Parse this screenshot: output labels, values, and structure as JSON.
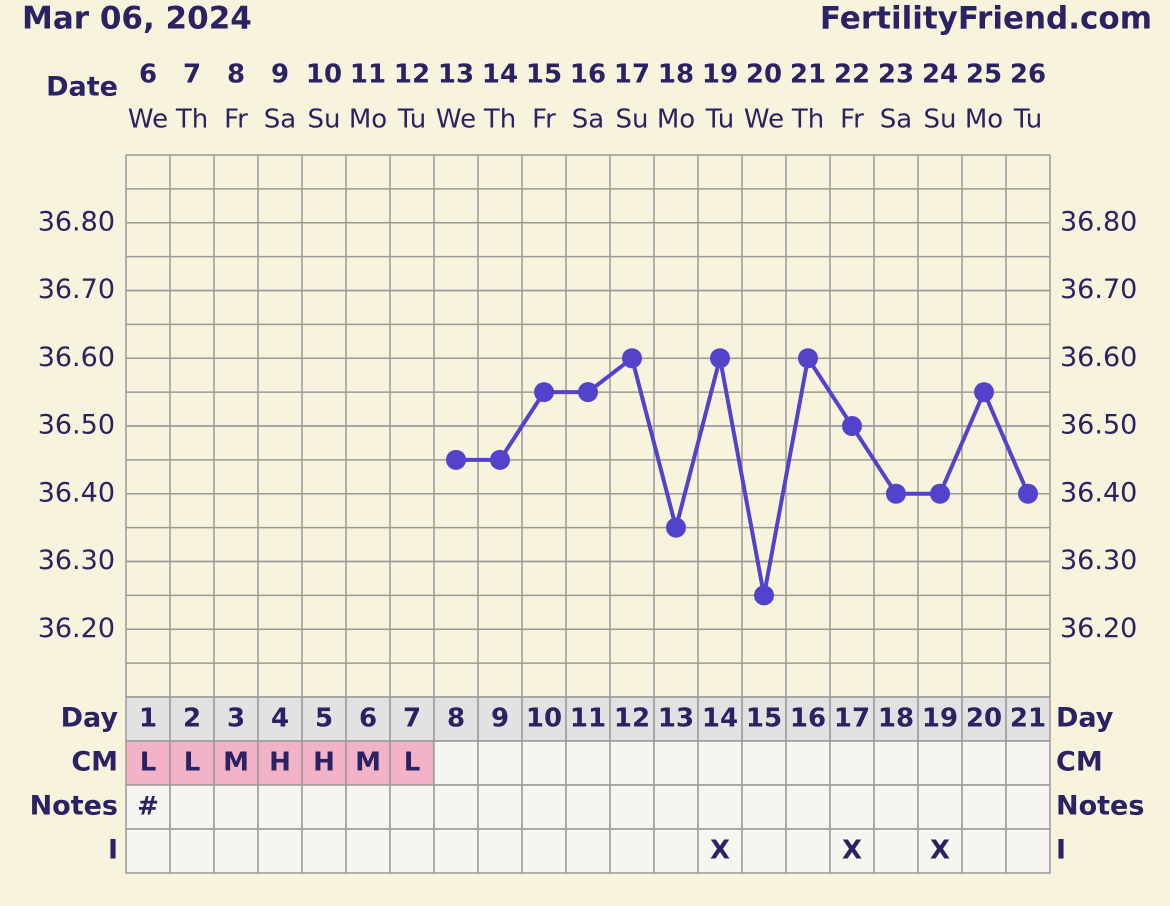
{
  "header": {
    "date": "Mar 06, 2024",
    "site": "FertilityFriend.com"
  },
  "chart_data": {
    "type": "line",
    "x_label": "Date",
    "categories": [
      6,
      7,
      8,
      9,
      10,
      11,
      12,
      13,
      14,
      15,
      16,
      17,
      18,
      19,
      20,
      21,
      22,
      23,
      24,
      25,
      26
    ],
    "weekdays": [
      "We",
      "Th",
      "Fr",
      "Sa",
      "Su",
      "Mo",
      "Tu",
      "We",
      "Th",
      "Fr",
      "Sa",
      "Su",
      "Mo",
      "Tu",
      "We",
      "Th",
      "Fr",
      "Sa",
      "Su",
      "Mo",
      "Tu"
    ],
    "values": [
      null,
      null,
      null,
      null,
      null,
      null,
      null,
      36.45,
      36.45,
      36.55,
      36.55,
      36.6,
      36.35,
      36.6,
      36.25,
      36.6,
      36.5,
      36.4,
      36.4,
      36.55,
      36.4
    ],
    "color": "#5343cc",
    "ylim": [
      36.1,
      36.9
    ],
    "yticks": [
      {
        "value": 36.2,
        "label": "36.20"
      },
      {
        "value": 36.3,
        "label": "36.30"
      },
      {
        "value": 36.4,
        "label": "36.40"
      },
      {
        "value": 36.5,
        "label": "36.50"
      },
      {
        "value": 36.6,
        "label": "36.60"
      },
      {
        "value": 36.7,
        "label": "36.70"
      },
      {
        "value": 36.8,
        "label": "36.80"
      }
    ],
    "grid": true
  },
  "table": {
    "rows": [
      {
        "label": "Day",
        "cells": [
          1,
          2,
          3,
          4,
          5,
          6,
          7,
          8,
          9,
          10,
          11,
          12,
          13,
          14,
          15,
          16,
          17,
          18,
          19,
          20,
          21
        ]
      },
      {
        "label": "CM",
        "cells": [
          "L",
          "L",
          "M",
          "H",
          "H",
          "M",
          "L",
          null,
          null,
          null,
          null,
          null,
          null,
          null,
          null,
          null,
          null,
          null,
          null,
          null,
          null
        ]
      },
      {
        "label": "Notes",
        "cells": [
          "#",
          null,
          null,
          null,
          null,
          null,
          null,
          null,
          null,
          null,
          null,
          null,
          null,
          null,
          null,
          null,
          null,
          null,
          null,
          null,
          null
        ]
      },
      {
        "label": "I",
        "cells": [
          null,
          null,
          null,
          null,
          null,
          null,
          null,
          null,
          null,
          null,
          null,
          null,
          null,
          "X",
          null,
          null,
          "X",
          null,
          "X",
          null,
          null
        ]
      }
    ]
  }
}
